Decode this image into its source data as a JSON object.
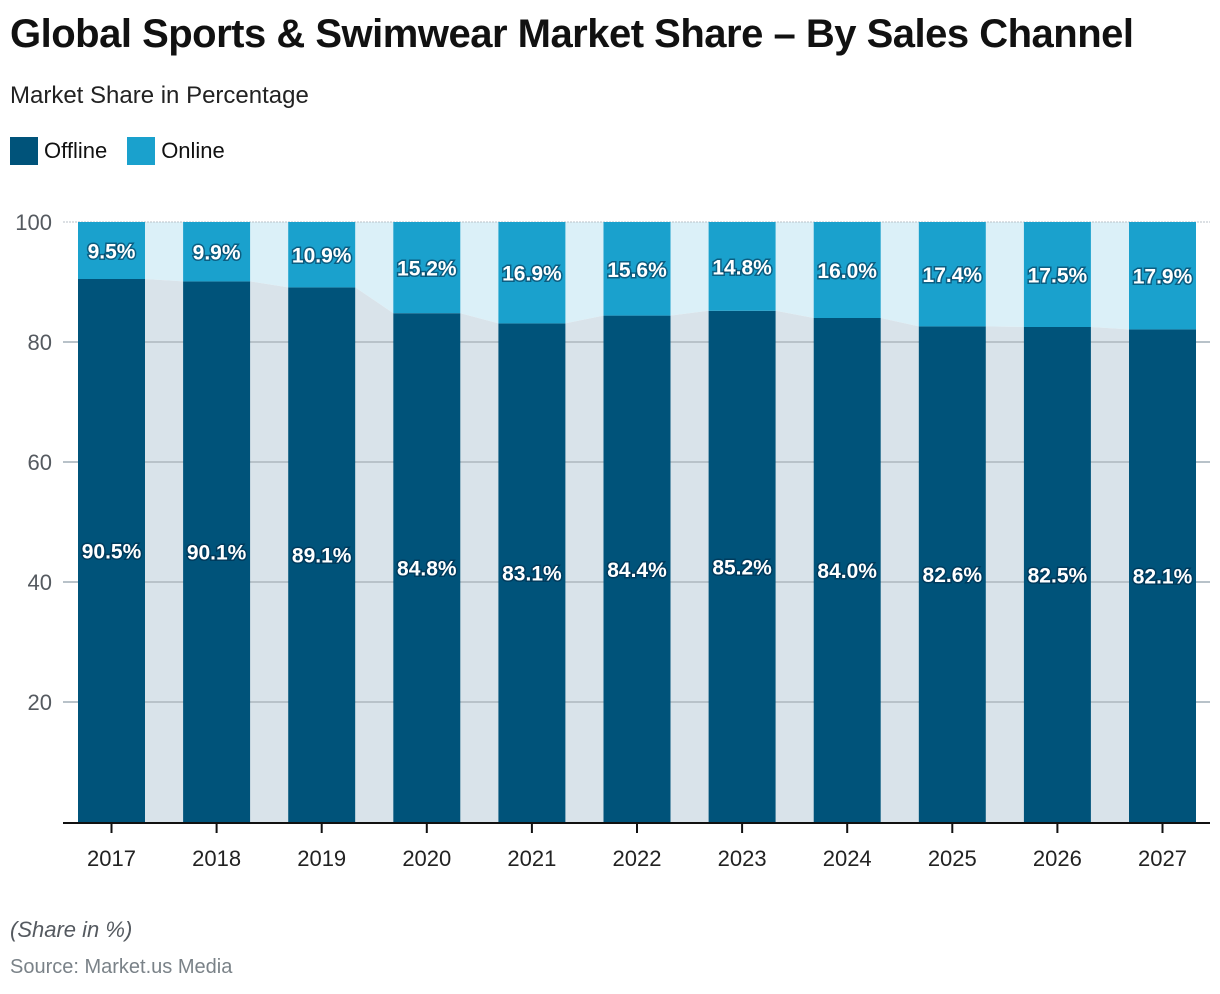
{
  "chart_data": {
    "type": "bar",
    "stacked": true,
    "title": "Global Sports & Swimwear Market Share – By Sales Channel",
    "subtitle": "Market Share in Percentage",
    "xlabel": "",
    "ylabel": "",
    "ylim": [
      0,
      100
    ],
    "yticks": [
      20,
      40,
      60,
      80,
      100
    ],
    "grid": true,
    "legend_position": "top-left",
    "categories": [
      "2017",
      "2018",
      "2019",
      "2020",
      "2021",
      "2022",
      "2023",
      "2024",
      "2025",
      "2026",
      "2027"
    ],
    "series": [
      {
        "name": "Offline",
        "color": "#00537a",
        "values": [
          90.5,
          90.1,
          89.1,
          84.8,
          83.1,
          84.4,
          85.2,
          84.0,
          82.6,
          82.5,
          82.1
        ],
        "labels": [
          "90.5%",
          "90.1%",
          "89.1%",
          "84.8%",
          "83.1%",
          "84.4%",
          "85.2%",
          "84.0%",
          "82.6%",
          "82.5%",
          "82.1%"
        ]
      },
      {
        "name": "Online",
        "color": "#1aa1cd",
        "values": [
          9.5,
          9.9,
          10.9,
          15.2,
          16.9,
          15.6,
          14.8,
          16.0,
          17.4,
          17.5,
          17.9
        ],
        "labels": [
          "9.5%",
          "9.9%",
          "10.9%",
          "15.2%",
          "16.9%",
          "15.6%",
          "14.8%",
          "16.0%",
          "17.4%",
          "17.5%",
          "17.9%"
        ]
      }
    ],
    "note": "(Share in %)",
    "source": "Source: Market.us Media"
  },
  "colors": {
    "offline": "#00537a",
    "online": "#1aa1cd",
    "offline_band": "#d9e3ea",
    "online_band": "#dbf0f8"
  }
}
